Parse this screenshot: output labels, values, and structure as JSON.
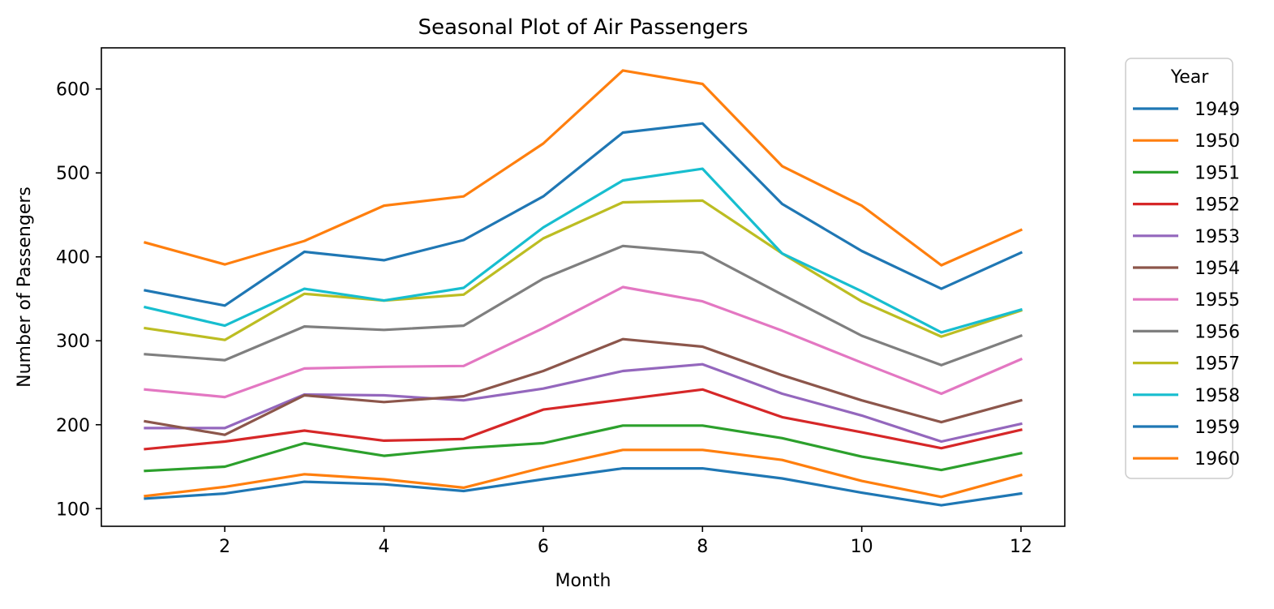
{
  "chart_data": {
    "type": "line",
    "title": "Seasonal Plot of Air Passengers",
    "xlabel": "Month",
    "ylabel": "Number of Passengers",
    "xlim": [
      0.45,
      12.55
    ],
    "ylim": [
      79,
      649
    ],
    "xticks": [
      2,
      4,
      6,
      8,
      10,
      12
    ],
    "yticks": [
      100,
      200,
      300,
      400,
      500,
      600
    ],
    "grid": false,
    "legend": {
      "title": "Year",
      "placement": "outside-right"
    },
    "x": [
      1,
      2,
      3,
      4,
      5,
      6,
      7,
      8,
      9,
      10,
      11,
      12
    ],
    "series": [
      {
        "name": "1949",
        "color": "#1f77b4",
        "values": [
          112,
          118,
          132,
          129,
          121,
          135,
          148,
          148,
          136,
          119,
          104,
          118
        ]
      },
      {
        "name": "1950",
        "color": "#ff7f0e",
        "values": [
          115,
          126,
          141,
          135,
          125,
          149,
          170,
          170,
          158,
          133,
          114,
          140
        ]
      },
      {
        "name": "1951",
        "color": "#2ca02c",
        "values": [
          145,
          150,
          178,
          163,
          172,
          178,
          199,
          199,
          184,
          162,
          146,
          166
        ]
      },
      {
        "name": "1952",
        "color": "#d62728",
        "values": [
          171,
          180,
          193,
          181,
          183,
          218,
          230,
          242,
          209,
          191,
          172,
          194
        ]
      },
      {
        "name": "1953",
        "color": "#9467bd",
        "values": [
          196,
          196,
          236,
          235,
          229,
          243,
          264,
          272,
          237,
          211,
          180,
          201
        ]
      },
      {
        "name": "1954",
        "color": "#8c564b",
        "values": [
          204,
          188,
          235,
          227,
          234,
          264,
          302,
          293,
          259,
          229,
          203,
          229
        ]
      },
      {
        "name": "1955",
        "color": "#e377c2",
        "values": [
          242,
          233,
          267,
          269,
          270,
          315,
          364,
          347,
          312,
          274,
          237,
          278
        ]
      },
      {
        "name": "1956",
        "color": "#7f7f7f",
        "values": [
          284,
          277,
          317,
          313,
          318,
          374,
          413,
          405,
          355,
          306,
          271,
          306
        ]
      },
      {
        "name": "1957",
        "color": "#bcbd22",
        "values": [
          315,
          301,
          356,
          348,
          355,
          422,
          465,
          467,
          404,
          347,
          305,
          336
        ]
      },
      {
        "name": "1958",
        "color": "#17becf",
        "values": [
          340,
          318,
          362,
          348,
          363,
          435,
          491,
          505,
          404,
          359,
          310,
          337
        ]
      },
      {
        "name": "1959",
        "color": "#1f77b4",
        "values": [
          360,
          342,
          406,
          396,
          420,
          472,
          548,
          559,
          463,
          407,
          362,
          405
        ]
      },
      {
        "name": "1960",
        "color": "#ff7f0e",
        "values": [
          417,
          391,
          419,
          461,
          472,
          535,
          622,
          606,
          508,
          461,
          390,
          432
        ]
      }
    ]
  }
}
